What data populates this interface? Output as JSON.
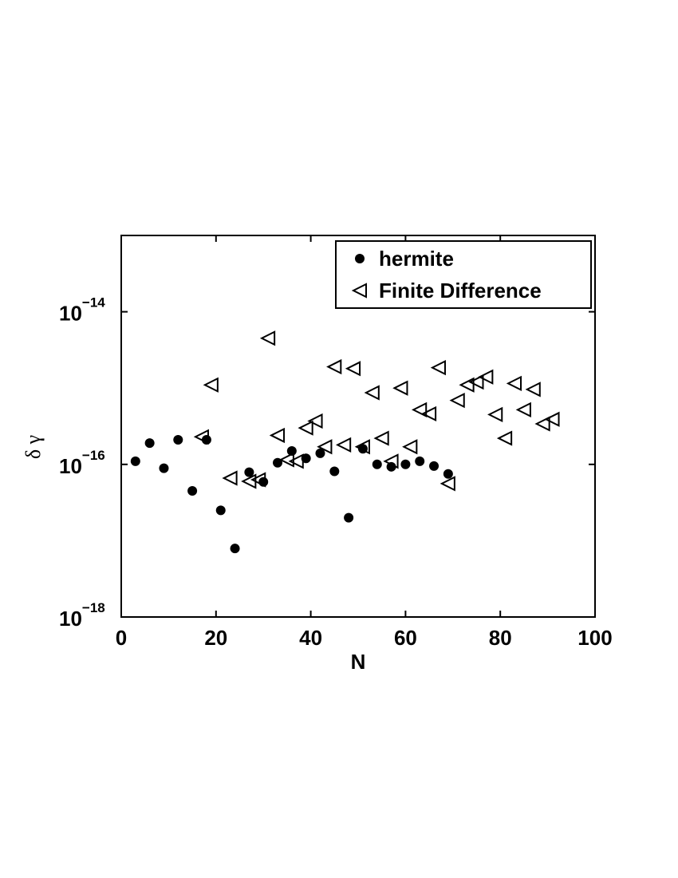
{
  "chart_data": {
    "type": "scatter",
    "xlabel": "N",
    "ylabel": "δ γ",
    "xlim": [
      0,
      100
    ],
    "xticks": [
      0,
      20,
      40,
      60,
      80,
      100
    ],
    "ylim": [
      1e-18,
      1e-13
    ],
    "ylog": true,
    "yticks": [
      {
        "value": 1e-18,
        "label": "10",
        "exponent": "−18"
      },
      {
        "value": 1e-16,
        "label": "10",
        "exponent": "−16"
      },
      {
        "value": 1e-14,
        "label": "10",
        "exponent": "−14"
      }
    ],
    "legend": "upper right",
    "series": [
      {
        "name": "hermite",
        "color": "#000000",
        "marker": "circle",
        "x": [
          3,
          6,
          9,
          12,
          15,
          18,
          21,
          24,
          27,
          30,
          33,
          36,
          39,
          42,
          45,
          48,
          51,
          54,
          57,
          60,
          63,
          66,
          69
        ],
        "values": [
          1.1e-16,
          1.9e-16,
          8.9e-17,
          2.1e-16,
          4.5e-17,
          2.1e-16,
          2.5e-17,
          7.9e-18,
          7.9e-17,
          5.9e-17,
          1.05e-16,
          1.5e-16,
          1.2e-16,
          1.4e-16,
          8.1e-17,
          2e-17,
          1.6e-16,
          1e-16,
          9.3e-17,
          1e-16,
          1.1e-16,
          9.5e-17,
          7.5e-17
        ]
      },
      {
        "name": "Finite Difference",
        "color": "#000000",
        "marker": "triangle-left",
        "x": [
          17,
          19,
          23,
          27,
          29,
          31,
          33,
          35,
          37,
          39,
          41,
          43,
          45,
          47,
          49,
          51,
          53,
          55,
          57,
          59,
          61,
          63,
          65,
          67,
          69,
          71,
          73,
          75,
          77,
          79,
          81,
          83,
          85,
          87,
          89,
          91
        ],
        "values": [
          2.3e-16,
          1.1e-15,
          6.6e-17,
          6e-17,
          6.3e-17,
          4.5e-15,
          2.4e-16,
          1.15e-16,
          1.1e-16,
          3e-16,
          3.7e-16,
          1.7e-16,
          1.9e-15,
          1.8e-16,
          1.8e-15,
          1.7e-16,
          8.7e-16,
          2.2e-16,
          1.1e-16,
          1e-15,
          1.7e-16,
          5.2e-16,
          4.6e-16,
          1.85e-15,
          5.6e-17,
          6.9e-16,
          1.1e-15,
          1.2e-15,
          1.4e-15,
          4.5e-16,
          2.2e-16,
          1.15e-15,
          5.2e-16,
          9.6e-16,
          3.4e-16,
          3.9e-16
        ]
      }
    ]
  }
}
